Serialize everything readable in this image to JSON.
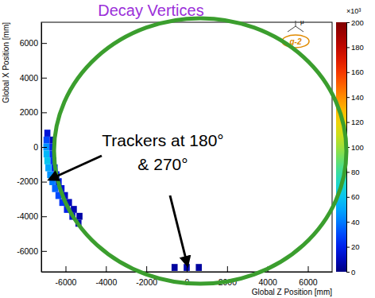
{
  "chart_data": {
    "type": "heatmap",
    "title": "Decay Vertices",
    "x_label": "Global Z Position [mm]",
    "y_label": "Global X Position [mm]",
    "xlim": [
      -7200,
      7200
    ],
    "ylim": [
      -7200,
      7200
    ],
    "xticks": [
      -6000,
      -4000,
      -2000,
      0,
      2000,
      4000,
      6000
    ],
    "yticks": [
      -6000,
      -4000,
      -2000,
      0,
      2000,
      4000,
      6000
    ],
    "cell_width": 300,
    "cell_height": 400,
    "cells": [
      {
        "x": -6900,
        "y": 800,
        "value": 15
      },
      {
        "x": -6940,
        "y": 400,
        "value": 30
      },
      {
        "x": -6950,
        "y": 0,
        "value": 45
      },
      {
        "x": -6940,
        "y": -400,
        "value": 55
      },
      {
        "x": -6900,
        "y": -800,
        "value": 60
      },
      {
        "x": -6850,
        "y": -1200,
        "value": 50
      },
      {
        "x": -6760,
        "y": -1600,
        "value": 45
      },
      {
        "x": -6650,
        "y": -2000,
        "value": 40
      },
      {
        "x": -6520,
        "y": -2400,
        "value": 35
      },
      {
        "x": -6350,
        "y": -2800,
        "value": 30
      },
      {
        "x": -6160,
        "y": -3200,
        "value": 25
      },
      {
        "x": -5930,
        "y": -3600,
        "value": 20
      },
      {
        "x": -5660,
        "y": -4000,
        "value": 15
      },
      {
        "x": -5360,
        "y": -4400,
        "value": 8
      },
      {
        "x": -6640,
        "y": 400,
        "value": 10
      },
      {
        "x": -6650,
        "y": 0,
        "value": 20
      },
      {
        "x": -6640,
        "y": -400,
        "value": 25
      },
      {
        "x": -6600,
        "y": -800,
        "value": 25
      },
      {
        "x": -6540,
        "y": -1200,
        "value": 22
      },
      {
        "x": -6450,
        "y": -1600,
        "value": 20
      },
      {
        "x": -6340,
        "y": -2000,
        "value": 18
      },
      {
        "x": -6200,
        "y": -2400,
        "value": 15
      },
      {
        "x": -6030,
        "y": -2800,
        "value": 12
      },
      {
        "x": -5830,
        "y": -3200,
        "value": 10
      },
      {
        "x": -5590,
        "y": -3600,
        "value": 8
      },
      {
        "x": -5310,
        "y": -4000,
        "value": 6
      },
      {
        "x": -600,
        "y": -6950,
        "value": 5
      },
      {
        "x": 0,
        "y": -6950,
        "value": 8
      },
      {
        "x": 600,
        "y": -6950,
        "value": 5
      }
    ],
    "color_range": [
      0,
      200
    ],
    "color_ticks": [
      0,
      20,
      40,
      60,
      80,
      100,
      120,
      140,
      160,
      180,
      200
    ],
    "color_label": "×10³",
    "annotation": [
      "Trackers at 180°",
      "& 270°"
    ],
    "logo": [
      "μ",
      "g-2"
    ]
  }
}
